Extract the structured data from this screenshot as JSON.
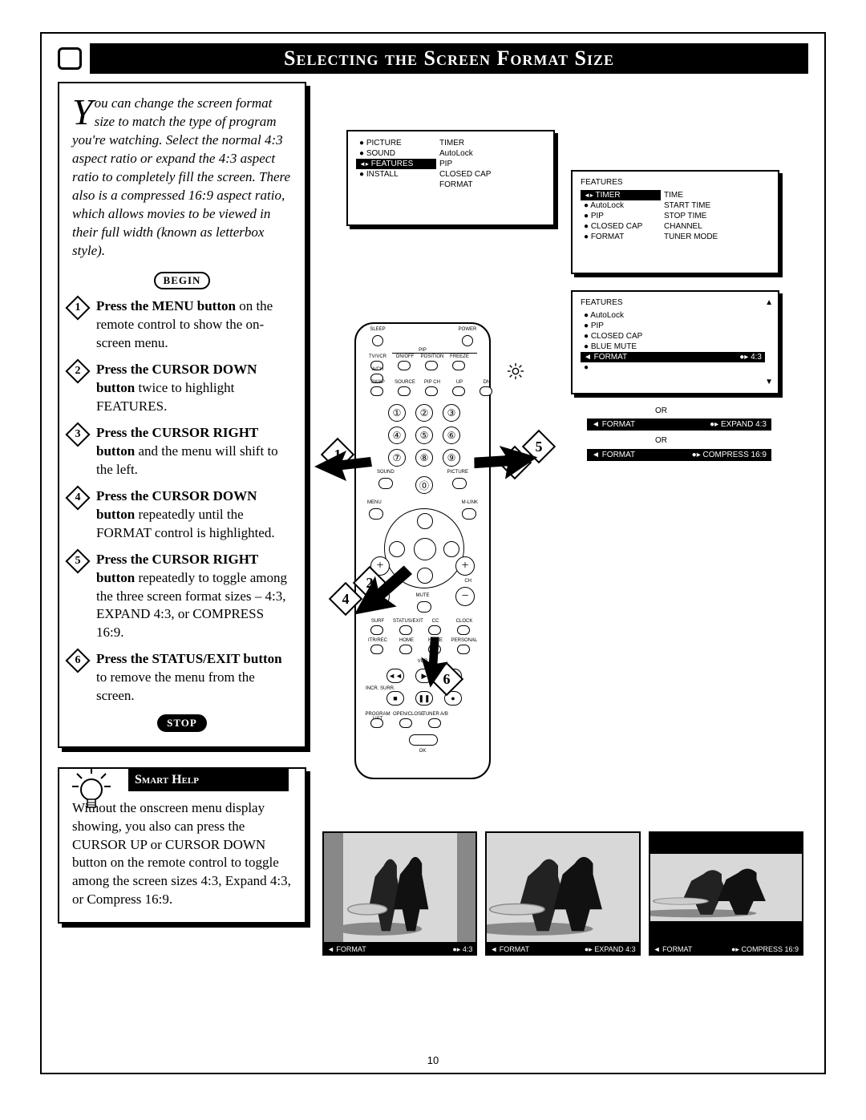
{
  "page": {
    "title": "Selecting the Screen Format Size",
    "number": "10"
  },
  "intro": {
    "dropcap": "Y",
    "text": "ou can change the screen format size to match the type of program you're watching. Select the normal 4:3 aspect ratio or expand the 4:3 aspect ratio to completely fill the screen. There also is a compressed 16:9 aspect ratio, which allows movies to be viewed in their full width (known as letterbox style)."
  },
  "begin_label": "BEGIN",
  "stop_label": "STOP",
  "steps": [
    {
      "n": "1",
      "bold": "Press the MENU button",
      "rest": " on the remote control to show the on-screen menu."
    },
    {
      "n": "2",
      "bold": "Press the CURSOR DOWN button",
      "rest": " twice to highlight FEATURES."
    },
    {
      "n": "3",
      "bold": "Press the CURSOR RIGHT button",
      "rest": " and the menu will shift to the left."
    },
    {
      "n": "4",
      "bold": "Press the CURSOR DOWN button",
      "rest": " repeatedly until the FORMAT control is highlighted."
    },
    {
      "n": "5",
      "bold": "Press the CURSOR RIGHT button",
      "rest": " repeatedly to toggle among the three screen format sizes – 4:3, EXPAND 4:3, or COMPRESS 16:9."
    },
    {
      "n": "6",
      "bold": "Press the STATUS/EXIT button",
      "rest": " to remove the menu from the screen."
    }
  ],
  "help": {
    "title": "Smart Help",
    "text": "Without the onscreen menu display showing, you also can press the CURSOR UP or CURSOR DOWN button on the remote control to toggle among the screen sizes 4:3, Expand 4:3, or Compress 16:9."
  },
  "menus": {
    "top": {
      "left_col": [
        "PICTURE",
        "SOUND",
        "FEATURES",
        "INSTALL"
      ],
      "left_selected_index": 2,
      "right_col": [
        "TIMER",
        "AutoLock",
        "PIP",
        "CLOSED CAP",
        "FORMAT"
      ]
    },
    "mid": {
      "header": "FEATURES",
      "left_col": [
        "TIMER",
        "AutoLock",
        "PIP",
        "CLOSED CAP",
        "FORMAT"
      ],
      "left_selected_index": 0,
      "right_col": [
        "TIME",
        "START TIME",
        "STOP TIME",
        "CHANNEL",
        "TUNER MODE"
      ]
    },
    "low": {
      "header": "FEATURES",
      "items": [
        "AutoLock",
        "PIP",
        "CLOSED CAP",
        "BLUE MUTE",
        "FORMAT"
      ],
      "selected_index": 4,
      "selected_value": "4:3"
    },
    "bars": [
      {
        "left": "FORMAT",
        "right": "EXPAND 4:3"
      },
      {
        "left": "FORMAT",
        "right": "COMPRESS 16:9"
      }
    ],
    "or_label": "OR"
  },
  "remote": {
    "top_labels": [
      "SLEEP",
      "POWER"
    ],
    "row2_labels": [
      "TV/VCR",
      "ON/OFF",
      "POSITION",
      "FREEZE"
    ],
    "row3_labels": [
      "A/CH"
    ],
    "row4_labels": [
      "SWAP",
      "SOURCE",
      "PIP CH"
    ],
    "row5_labels": [
      "UP",
      "DN"
    ],
    "sound_label": "SOUND",
    "picture_label": "PICTURE",
    "menu_label": "MENU",
    "mlink_label": "M-LINK",
    "vol_label": "VOL",
    "ch_label": "CH",
    "mute_label": "MUTE",
    "row_bottom1": [
      "SURF",
      "STATUS/EXIT",
      "CC",
      "CLOCK"
    ],
    "row_bottom2": [
      "ITR/REC",
      "HOME",
      "HOME",
      "PERSONAL"
    ],
    "vcr_label": "VCR",
    "incr_surr": "INCR. SURR.",
    "row_bottom3": [
      "PROGRAM LIST",
      "OPEN/CLOSE",
      "TUNER A/B"
    ],
    "ok_label": "OK",
    "pip_label": "PIP"
  },
  "callouts": [
    "1",
    "2",
    "3",
    "4",
    "5",
    "6"
  ],
  "triptych": {
    "captions": [
      {
        "left": "◄  FORMAT",
        "right": "●▸  4:3"
      },
      {
        "left": "◄  FORMAT",
        "right": "●▸  EXPAND 4:3"
      },
      {
        "left": "◄  FORMAT",
        "right": "●▸ COMPRESS 16:9"
      }
    ],
    "inner_widths": [
      "75%",
      "100%",
      "100%"
    ],
    "letterbox": [
      false,
      false,
      true
    ]
  },
  "colors": {
    "black": "#000000",
    "white": "#ffffff",
    "gray": "#888888",
    "light_gray": "#d8d8d8"
  }
}
